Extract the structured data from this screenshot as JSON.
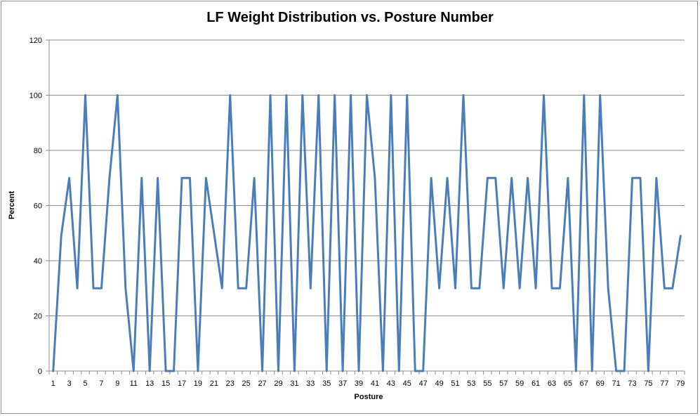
{
  "chart_data": {
    "type": "line",
    "title": "LF Weight Distribution vs. Posture Number",
    "xlabel": "Posture",
    "ylabel": "Percent",
    "ylim": [
      0,
      120
    ],
    "yticks": [
      0,
      20,
      40,
      60,
      80,
      100,
      120
    ],
    "xtick_labels": [
      "1",
      "3",
      "5",
      "7",
      "9",
      "11",
      "13",
      "15",
      "17",
      "19",
      "21",
      "23",
      "25",
      "27",
      "29",
      "31",
      "33",
      "35",
      "37",
      "39",
      "41",
      "43",
      "45",
      "47",
      "49",
      "51",
      "53",
      "55",
      "57",
      "59",
      "61",
      "63",
      "65",
      "67",
      "69",
      "71",
      "73",
      "75",
      "77",
      "79"
    ],
    "grid": "horizontal",
    "line_color": "#4a7ebb",
    "x": [
      1,
      2,
      3,
      4,
      5,
      6,
      7,
      8,
      9,
      10,
      11,
      12,
      13,
      14,
      15,
      16,
      17,
      18,
      19,
      20,
      21,
      22,
      23,
      24,
      25,
      26,
      27,
      28,
      29,
      30,
      31,
      32,
      33,
      34,
      35,
      36,
      37,
      38,
      39,
      40,
      41,
      42,
      43,
      44,
      45,
      46,
      47,
      48,
      49,
      50,
      51,
      52,
      53,
      54,
      55,
      56,
      57,
      58,
      59,
      60,
      61,
      62,
      63,
      64,
      65,
      66,
      67,
      68,
      69,
      70,
      71,
      72,
      73,
      74,
      75,
      76,
      77,
      78,
      79
    ],
    "series": [
      {
        "values": [
          0,
          49,
          70,
          30,
          100,
          30,
          30,
          70,
          100,
          30,
          0,
          70,
          0,
          70,
          0,
          0,
          70,
          70,
          0,
          70,
          50,
          30,
          100,
          30,
          30,
          70,
          0,
          100,
          0,
          100,
          0,
          100,
          30,
          100,
          0,
          100,
          0,
          100,
          0,
          100,
          70,
          0,
          100,
          0,
          100,
          0,
          0,
          70,
          30,
          70,
          30,
          100,
          30,
          30,
          70,
          70,
          30,
          70,
          30,
          70,
          30,
          100,
          30,
          30,
          70,
          0,
          100,
          0,
          100,
          30,
          0,
          0,
          70,
          70,
          0,
          70,
          30,
          30,
          49
        ]
      }
    ]
  }
}
